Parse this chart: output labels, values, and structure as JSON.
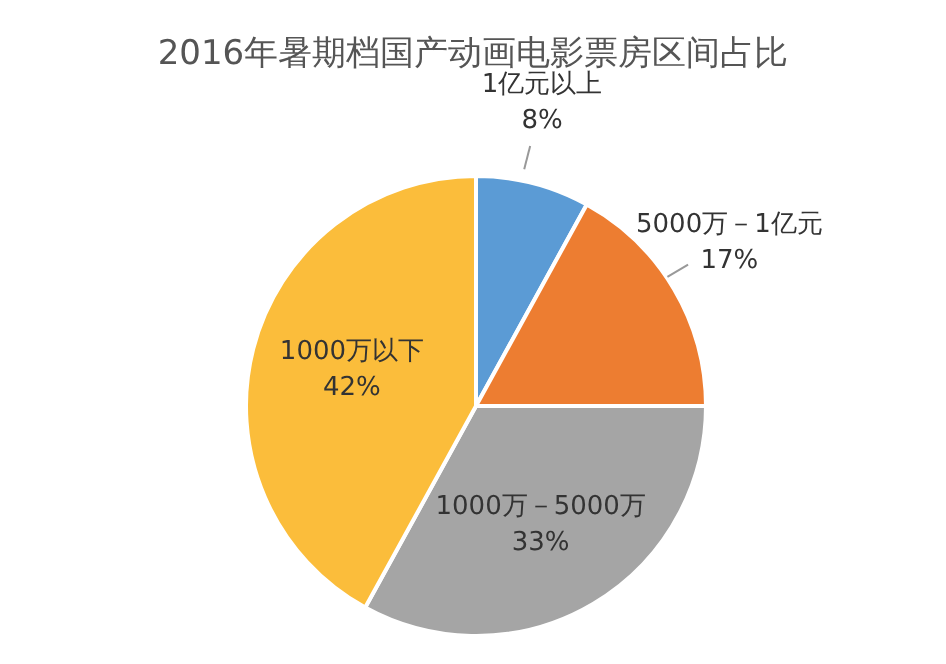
{
  "chart_data": {
    "type": "pie",
    "title": "2016年暑期档国产动画电影票房区间占比",
    "categories": [
      "1亿元以上",
      "5000万－1亿元",
      "1000万－5000万",
      "1000万以下"
    ],
    "values": [
      8,
      17,
      33,
      42
    ],
    "value_labels": [
      "8%",
      "17%",
      "33%",
      "42%"
    ],
    "colors": [
      "#5b9bd5",
      "#ed7d31",
      "#a5a5a5",
      "#fbbd3b"
    ],
    "legend": false
  }
}
